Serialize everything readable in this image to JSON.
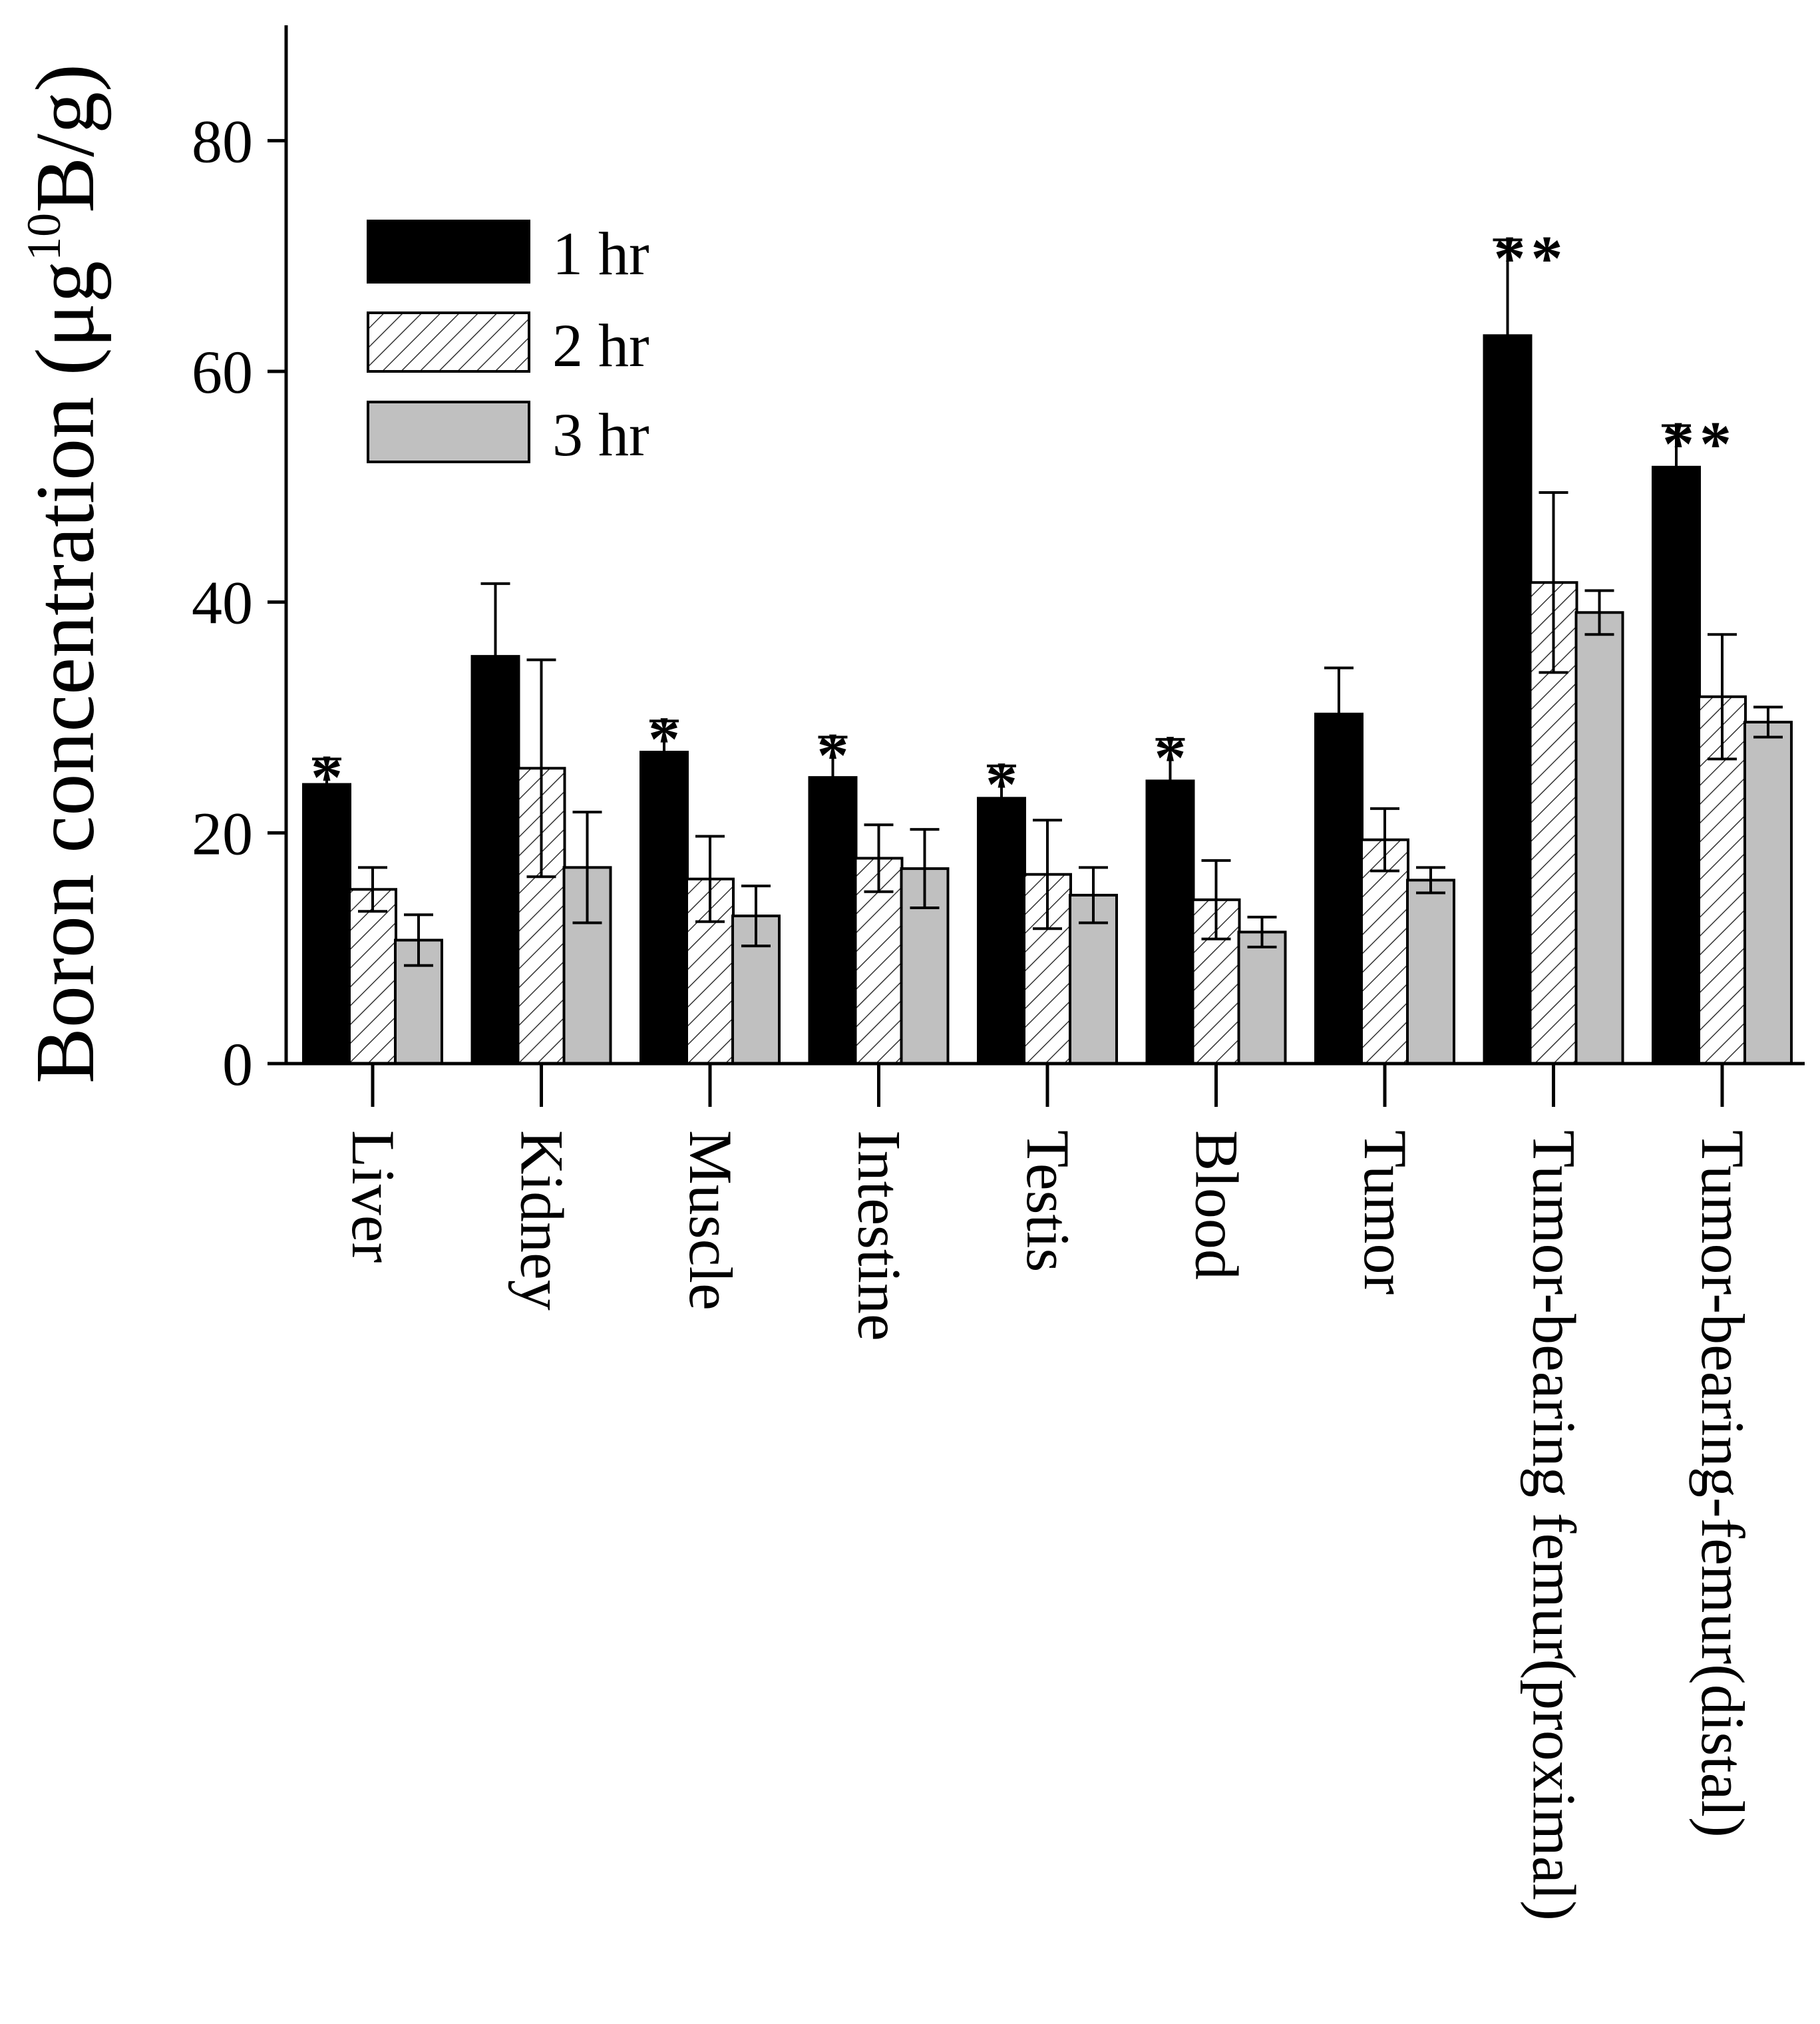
{
  "chart_data": {
    "type": "bar",
    "title": "",
    "xlabel": "",
    "ylabel": "Boron concentration (μg",
    "ylabel_sup": "10",
    "ylabel_end": "B/g)",
    "ylim": [
      0,
      90
    ],
    "yticks": [
      0,
      20,
      40,
      60,
      80
    ],
    "categories": [
      "Liver",
      "Kidney",
      "Muscle",
      "Intestine",
      "Testis",
      "Blood",
      "Tumor",
      "Tumor-bearing femur(proximal)",
      "Tumor-bearing-femur(distal)"
    ],
    "series": [
      {
        "name": "1 hr",
        "fill": "#000000",
        "pattern": "solid",
        "values": [
          24.2,
          35.3,
          27.0,
          24.8,
          23.0,
          24.5,
          30.3,
          63.1,
          51.7
        ],
        "errors": [
          2.2,
          6.3,
          2.7,
          3.5,
          2.8,
          3.6,
          4.0,
          8.3,
          3.6
        ]
      },
      {
        "name": "2 hr",
        "fill": "#ffffff",
        "pattern": "hatched",
        "values": [
          15.1,
          25.6,
          16.0,
          17.8,
          16.4,
          14.2,
          19.4,
          41.7,
          31.8
        ],
        "errors": [
          1.9,
          9.4,
          3.7,
          2.9,
          4.7,
          3.4,
          2.7,
          7.8,
          5.4
        ]
      },
      {
        "name": "3 hr",
        "fill": "#c0c0c0",
        "pattern": "solid",
        "values": [
          10.7,
          17.0,
          12.8,
          16.9,
          14.6,
          11.4,
          15.9,
          39.1,
          29.6
        ],
        "errors": [
          2.2,
          4.8,
          2.6,
          3.4,
          2.4,
          1.3,
          1.1,
          1.9,
          1.3
        ]
      }
    ],
    "significance": [
      "*",
      "",
      "*",
      "*",
      "*",
      "*",
      "",
      "**",
      "**"
    ],
    "legend": {
      "position": "top-left",
      "entries": [
        "1 hr",
        "2 hr",
        "3 hr"
      ]
    }
  }
}
